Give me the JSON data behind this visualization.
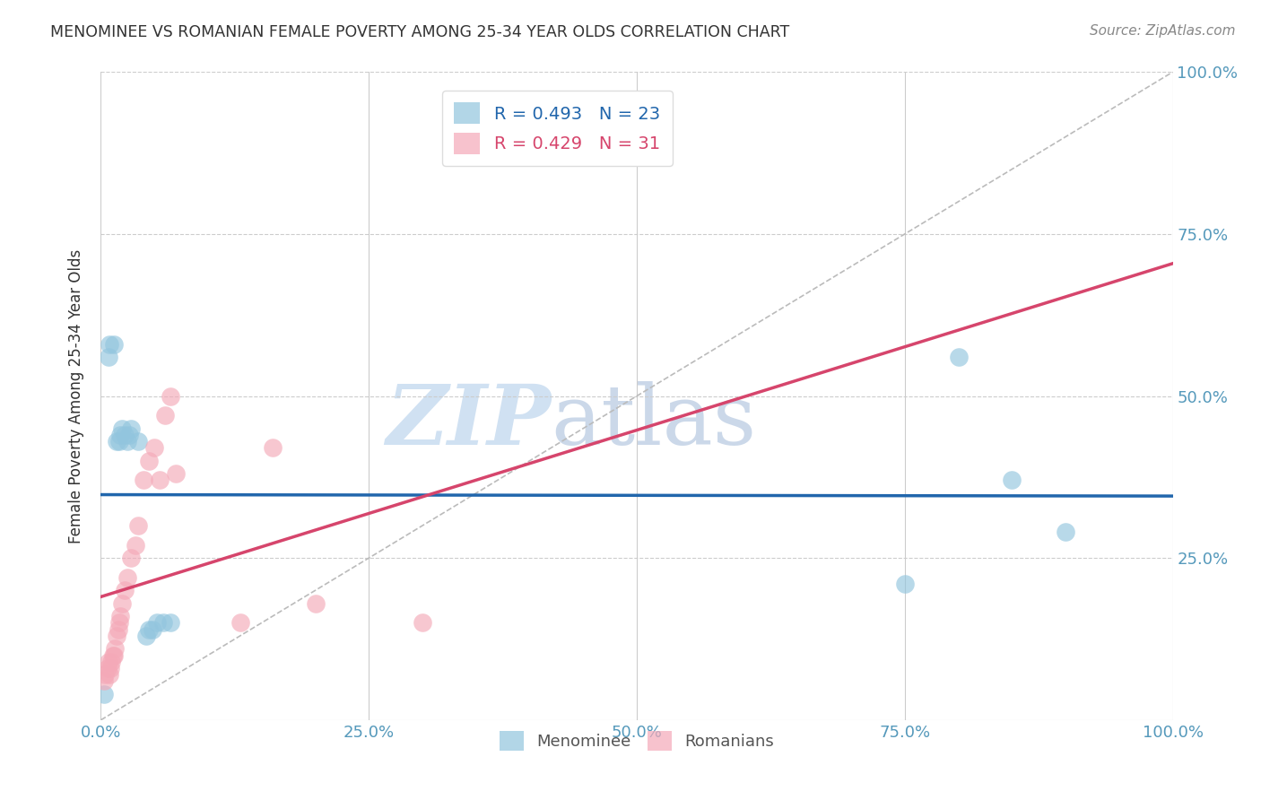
{
  "title": "MENOMINEE VS ROMANIAN FEMALE POVERTY AMONG 25-34 YEAR OLDS CORRELATION CHART",
  "source": "Source: ZipAtlas.com",
  "ylabel": "Female Poverty Among 25-34 Year Olds",
  "xlim": [
    0,
    1
  ],
  "ylim": [
    0,
    1
  ],
  "xticks": [
    0,
    0.25,
    0.5,
    0.75,
    1.0
  ],
  "yticks": [
    0.25,
    0.5,
    0.75,
    1.0
  ],
  "xticklabels": [
    "0.0%",
    "25.0%",
    "50.0%",
    "75.0%",
    "100.0%"
  ],
  "yticklabels": [
    "25.0%",
    "50.0%",
    "75.0%",
    "100.0%"
  ],
  "right_yticklabels": [
    "25.0%",
    "50.0%",
    "75.0%",
    "100.0%"
  ],
  "menominee_color": "#92C5DE",
  "romanian_color": "#F4A9B8",
  "blue_line_color": "#2166AC",
  "pink_line_color": "#D6456C",
  "diag_line_color": "#BBBBBB",
  "R_menominee": 0.493,
  "N_menominee": 23,
  "R_romanian": 0.429,
  "N_romanian": 31,
  "menominee_x": [
    0.003,
    0.007,
    0.008,
    0.012,
    0.015,
    0.017,
    0.018,
    0.02,
    0.022,
    0.025,
    0.026,
    0.028,
    0.035,
    0.042,
    0.045,
    0.048,
    0.052,
    0.058,
    0.065,
    0.75,
    0.8,
    0.85,
    0.9
  ],
  "menominee_y": [
    0.04,
    0.56,
    0.58,
    0.58,
    0.43,
    0.43,
    0.44,
    0.45,
    0.44,
    0.43,
    0.44,
    0.45,
    0.43,
    0.13,
    0.14,
    0.14,
    0.15,
    0.15,
    0.15,
    0.21,
    0.56,
    0.37,
    0.29
  ],
  "romanian_x": [
    0.003,
    0.004,
    0.006,
    0.007,
    0.008,
    0.009,
    0.01,
    0.011,
    0.012,
    0.013,
    0.015,
    0.016,
    0.017,
    0.018,
    0.02,
    0.022,
    0.025,
    0.028,
    0.032,
    0.035,
    0.04,
    0.045,
    0.05,
    0.055,
    0.06,
    0.065,
    0.07,
    0.13,
    0.16,
    0.2,
    0.3
  ],
  "romanian_y": [
    0.06,
    0.07,
    0.08,
    0.09,
    0.07,
    0.08,
    0.09,
    0.1,
    0.1,
    0.11,
    0.13,
    0.14,
    0.15,
    0.16,
    0.18,
    0.2,
    0.22,
    0.25,
    0.27,
    0.3,
    0.37,
    0.4,
    0.42,
    0.37,
    0.47,
    0.5,
    0.38,
    0.15,
    0.42,
    0.18,
    0.15
  ],
  "watermark_zip": "ZIP",
  "watermark_atlas": "atlas",
  "background_color": "#FFFFFF",
  "tick_color": "#5599BB",
  "text_color": "#333333",
  "legend_text_color_men": "#2166AC",
  "legend_text_color_rom": "#D6456C",
  "bottom_legend_color": "#555555"
}
